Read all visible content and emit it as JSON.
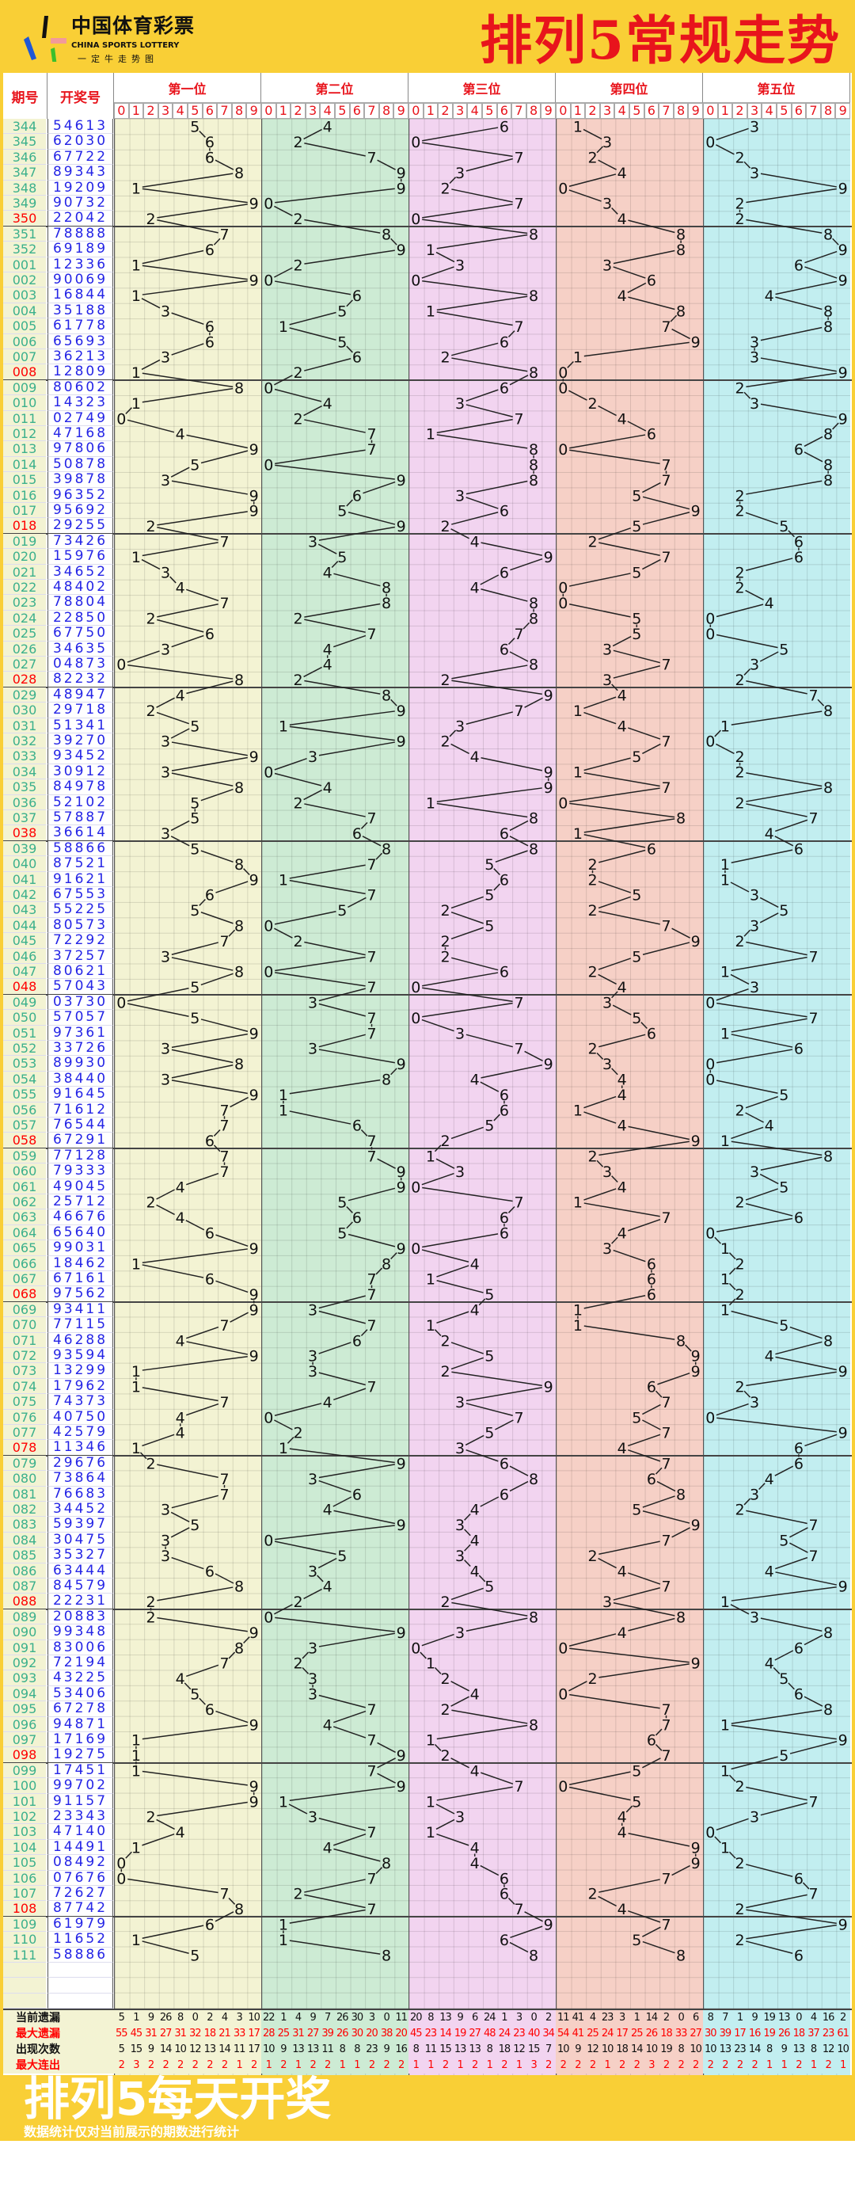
{
  "logo": {
    "cn": "中国体育彩票",
    "en": "CHINA SPORTS LOTTERY",
    "sub": "一定牛走势图"
  },
  "title": "排列5常规走势",
  "columns": {
    "period": "期号",
    "number": "开奖号",
    "positions": [
      "第一位",
      "第二位",
      "第三位",
      "第四位",
      "第五位"
    ],
    "digits": [
      "0",
      "1",
      "2",
      "3",
      "4",
      "5",
      "6",
      "7",
      "8",
      "9"
    ]
  },
  "colors": {
    "zones": [
      "#f3f3d3",
      "#cdebd4",
      "#f2d4f0",
      "#f6d0c6",
      "#c2eef0"
    ],
    "accent": "#e8141c",
    "period": "#3bb08c",
    "number": "#2424e6",
    "background": "#f9cf36"
  },
  "rows": [
    [
      "344",
      "54613"
    ],
    [
      "345",
      "62030"
    ],
    [
      "346",
      "67722"
    ],
    [
      "347",
      "89343"
    ],
    [
      "348",
      "19209"
    ],
    [
      "349",
      "90732"
    ],
    [
      "350",
      "22042",
      1
    ],
    [
      "351",
      "78888"
    ],
    [
      "352",
      "69189"
    ],
    [
      "001",
      "12336"
    ],
    [
      "002",
      "90069"
    ],
    [
      "003",
      "16844"
    ],
    [
      "004",
      "35188"
    ],
    [
      "005",
      "61778"
    ],
    [
      "006",
      "65693"
    ],
    [
      "007",
      "36213"
    ],
    [
      "008",
      "12809",
      1
    ],
    [
      "009",
      "80602"
    ],
    [
      "010",
      "14323"
    ],
    [
      "011",
      "02749"
    ],
    [
      "012",
      "47168"
    ],
    [
      "013",
      "97806"
    ],
    [
      "014",
      "50878"
    ],
    [
      "015",
      "39878"
    ],
    [
      "016",
      "96352"
    ],
    [
      "017",
      "95692"
    ],
    [
      "018",
      "29255",
      1
    ],
    [
      "019",
      "73426"
    ],
    [
      "020",
      "15976"
    ],
    [
      "021",
      "34652"
    ],
    [
      "022",
      "48402"
    ],
    [
      "023",
      "78804"
    ],
    [
      "024",
      "22850"
    ],
    [
      "025",
      "67750"
    ],
    [
      "026",
      "34635"
    ],
    [
      "027",
      "04873"
    ],
    [
      "028",
      "82232",
      1
    ],
    [
      "029",
      "48947"
    ],
    [
      "030",
      "29718"
    ],
    [
      "031",
      "51341"
    ],
    [
      "032",
      "39270"
    ],
    [
      "033",
      "93452"
    ],
    [
      "034",
      "30912"
    ],
    [
      "035",
      "84978"
    ],
    [
      "036",
      "52102"
    ],
    [
      "037",
      "57887"
    ],
    [
      "038",
      "36614",
      1
    ],
    [
      "039",
      "58866"
    ],
    [
      "040",
      "87521"
    ],
    [
      "041",
      "91621"
    ],
    [
      "042",
      "67553"
    ],
    [
      "043",
      "55225"
    ],
    [
      "044",
      "80573"
    ],
    [
      "045",
      "72292"
    ],
    [
      "046",
      "37257"
    ],
    [
      "047",
      "80621"
    ],
    [
      "048",
      "57043",
      1
    ],
    [
      "049",
      "03730"
    ],
    [
      "050",
      "57057"
    ],
    [
      "051",
      "97361"
    ],
    [
      "052",
      "33726"
    ],
    [
      "053",
      "89930"
    ],
    [
      "054",
      "38440"
    ],
    [
      "055",
      "91645"
    ],
    [
      "056",
      "71612"
    ],
    [
      "057",
      "76544"
    ],
    [
      "058",
      "67291",
      1
    ],
    [
      "059",
      "77128"
    ],
    [
      "060",
      "79333"
    ],
    [
      "061",
      "49045"
    ],
    [
      "062",
      "25712"
    ],
    [
      "063",
      "46676"
    ],
    [
      "064",
      "65640"
    ],
    [
      "065",
      "99031"
    ],
    [
      "066",
      "18462"
    ],
    [
      "067",
      "67161"
    ],
    [
      "068",
      "97562",
      1
    ],
    [
      "069",
      "93411"
    ],
    [
      "070",
      "77115"
    ],
    [
      "071",
      "46288"
    ],
    [
      "072",
      "93594"
    ],
    [
      "073",
      "13299"
    ],
    [
      "074",
      "17962"
    ],
    [
      "075",
      "74373"
    ],
    [
      "076",
      "40750"
    ],
    [
      "077",
      "42579"
    ],
    [
      "078",
      "11346",
      1
    ],
    [
      "079",
      "29676"
    ],
    [
      "080",
      "73864"
    ],
    [
      "081",
      "76683"
    ],
    [
      "082",
      "34452"
    ],
    [
      "083",
      "59397"
    ],
    [
      "084",
      "30475"
    ],
    [
      "085",
      "35327"
    ],
    [
      "086",
      "63444"
    ],
    [
      "087",
      "84579"
    ],
    [
      "088",
      "22231",
      1
    ],
    [
      "089",
      "20883"
    ],
    [
      "090",
      "99348"
    ],
    [
      "091",
      "83006"
    ],
    [
      "092",
      "72194"
    ],
    [
      "093",
      "43225"
    ],
    [
      "094",
      "53406"
    ],
    [
      "095",
      "67278"
    ],
    [
      "096",
      "94871"
    ],
    [
      "097",
      "17169"
    ],
    [
      "098",
      "19275",
      1
    ],
    [
      "099",
      "17451"
    ],
    [
      "100",
      "99702"
    ],
    [
      "101",
      "91157"
    ],
    [
      "102",
      "23343"
    ],
    [
      "103",
      "47140"
    ],
    [
      "104",
      "14491"
    ],
    [
      "105",
      "08492"
    ],
    [
      "106",
      "07676"
    ],
    [
      "107",
      "72627"
    ],
    [
      "108",
      "87742",
      1
    ],
    [
      "109",
      "61979"
    ],
    [
      "110",
      "11652"
    ],
    [
      "111",
      "58886"
    ]
  ],
  "stats": [
    {
      "label": "当前遗漏",
      "color": "#111",
      "values": [
        [
          5,
          1,
          9,
          26,
          8,
          0,
          2,
          4,
          3,
          10
        ],
        [
          22,
          1,
          4,
          9,
          7,
          26,
          30,
          3,
          0,
          11
        ],
        [
          20,
          8,
          13,
          9,
          6,
          24,
          1,
          3,
          0,
          2
        ],
        [
          11,
          41,
          4,
          23,
          3,
          1,
          14,
          2,
          0,
          6
        ],
        [
          8,
          7,
          1,
          9,
          19,
          13,
          0,
          4,
          16,
          2
        ]
      ]
    },
    {
      "label": "最大遗漏",
      "color": "#f00",
      "values": [
        [
          55,
          45,
          31,
          27,
          31,
          32,
          18,
          21,
          33,
          17
        ],
        [
          28,
          25,
          31,
          27,
          39,
          26,
          30,
          20,
          38,
          20
        ],
        [
          45,
          23,
          14,
          19,
          27,
          48,
          24,
          23,
          40,
          34
        ],
        [
          54,
          41,
          25,
          24,
          17,
          25,
          26,
          18,
          33,
          27
        ],
        [
          30,
          39,
          17,
          16,
          19,
          26,
          18,
          37,
          23,
          61
        ]
      ]
    },
    {
      "label": "出现次数",
      "color": "#111",
      "values": [
        [
          5,
          15,
          9,
          14,
          10,
          12,
          13,
          14,
          11,
          17
        ],
        [
          10,
          9,
          13,
          13,
          11,
          8,
          8,
          23,
          9,
          16
        ],
        [
          8,
          11,
          15,
          13,
          13,
          8,
          18,
          12,
          15,
          7
        ],
        [
          10,
          9,
          12,
          10,
          18,
          14,
          10,
          19,
          8,
          10
        ],
        [
          10,
          13,
          23,
          14,
          8,
          9,
          13,
          8,
          12,
          10
        ]
      ]
    },
    {
      "label": "最大连出",
      "color": "#f00",
      "values": [
        [
          2,
          3,
          2,
          2,
          2,
          2,
          2,
          2,
          1,
          2
        ],
        [
          1,
          2,
          1,
          2,
          2,
          1,
          1,
          2,
          2,
          2
        ],
        [
          1,
          1,
          2,
          1,
          2,
          1,
          2,
          1,
          3,
          2
        ],
        [
          2,
          2,
          2,
          1,
          2,
          2,
          3,
          2,
          2,
          2
        ],
        [
          2,
          2,
          2,
          2,
          1,
          1,
          2,
          1,
          2,
          1
        ]
      ]
    }
  ],
  "footer": {
    "title": "排列5每天开奖",
    "note": "数据统计仅对当前展示的期数进行统计"
  }
}
